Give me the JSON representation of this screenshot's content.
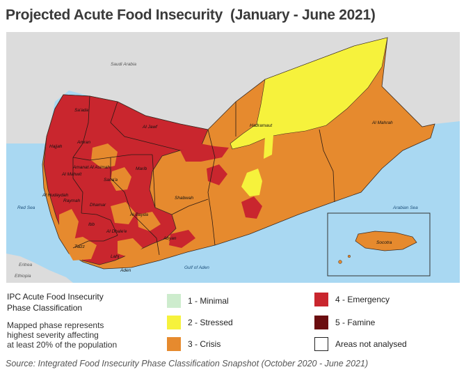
{
  "title": "Projected Acute Food Insecurity  (January - June 2021)",
  "colors": {
    "sea": "#a9d8f2",
    "land": "#dcdcdc",
    "minimal": "#cdeccd",
    "stressed": "#f6f23c",
    "crisis": "#e68a2e",
    "emergency": "#c9262e",
    "famine": "#6b0d0f",
    "not_analysed": "#ffffff"
  },
  "map": {
    "countries": {
      "saudi_arabia": "Saudi Arabia",
      "eritrea": "Eritrea",
      "ethiopia": "Ethiopia"
    },
    "seas": {
      "red_sea": "Red Sea",
      "gulf_of_aden": "Gulf of Aden",
      "arabian_sea": "Arabian Sea"
    },
    "governorates": {
      "saada": "Sa'ada",
      "al_jawf": "Al Jawf",
      "hadramaut": "Hadramaut",
      "al_mahrah": "Al Mahrah",
      "hajjah": "Hajjah",
      "amran": "Amran",
      "amanat_al_asimah": "Amanat Al Asimah",
      "al_mahwit": "Al Mahwit",
      "sanaa": "Sana'a",
      "marib": "Marib",
      "al_hudaydah": "Al Hudaydah",
      "raymah": "Raymah",
      "dhamar": "Dhamar",
      "shabwah": "Shabwah",
      "ibb": "Ibb",
      "al_bayda": "Al Bayda",
      "al_dhale": "Al Dhale'e",
      "abyan": "Abyan",
      "taizz": "Taizz",
      "lahj": "Lahj",
      "aden": "Aden",
      "socotra": "Socotra"
    }
  },
  "legend": {
    "title_line1": "IPC Acute Food Insecurity",
    "title_line2": "Phase Classification",
    "note_line1": "Mapped phase represents",
    "note_line2": "highest severity affecting",
    "note_line3": "at least 20% of the population",
    "items": [
      {
        "label": "1 - Minimal"
      },
      {
        "label": "2 - Stressed"
      },
      {
        "label": "3 - Crisis"
      },
      {
        "label": "4 - Emergency"
      },
      {
        "label": "5 - Famine"
      },
      {
        "label": "Areas not analysed"
      }
    ]
  },
  "source": "Source: Integrated Food Insecurity Phase Classification Snapshot (October 2020 - June 2021)"
}
